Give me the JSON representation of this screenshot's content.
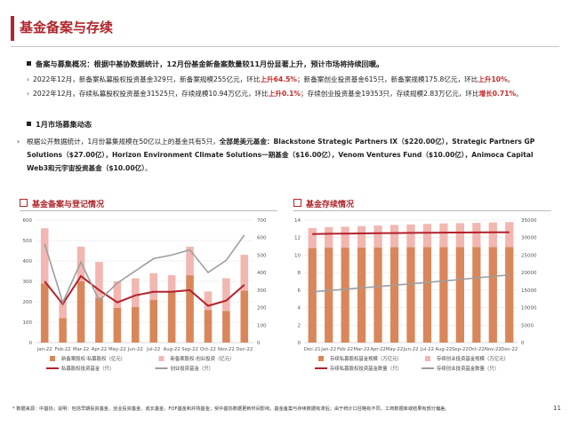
{
  "title": "基金备案与存续",
  "section1": {
    "heading": "备案与募集概况：根据中基协数据统计，12月份基金新备案数量较11月份显著上升，预计市场将持续回暖。",
    "line1": {
      "pre": "2022年12月，新备案私募股权投资基金329只，新备案规模255亿元，环比",
      "hl1": "上升64.5%",
      "mid": "；新备案创业投资基金615只，新备案规模175.8亿元，环比",
      "hl2": "上升10%",
      "post": "。"
    },
    "line2": {
      "pre": "2022年12月，存续私募股权投资基金31525只，存续规模10.94万亿元，环比",
      "hl1": "上升0.1%",
      "mid": "；存续创业投资基金19353只，存续规模2.83万亿元，环比",
      "hl2": "增长0.71%",
      "post": "。"
    }
  },
  "section2": {
    "heading": "1月市场募集动态",
    "p_pre": "根据公开数据统计，1月份募集规模在50亿以上的基金共有5只，",
    "p_bold": "全部是美元基金：Blackstone Strategic Partners IX（$220.00亿），Strategic Partners GP Solutions（$27.00亿），Horizon Environment Climate Solutions一期基金（$16.00亿），Venom Ventures Fund（$10.00亿），Animoca Capital Web3和元宇宙投资基金（$10.00亿）",
    "p_post": "。"
  },
  "chart_titles": {
    "left": "基金备案与登记情况",
    "right": "基金存续情况"
  },
  "legends": {
    "left": [
      "新备案股权-私募股权（亿元）",
      "新备案股权-创业投资（亿元）",
      "私募股权投资基金（只）",
      "创业投资基金（只）"
    ],
    "right": [
      "存续私募股权基金规模（万亿元）",
      "存续创业投资基金规模（万亿元）",
      "存续私募股权投资基金数量（只）",
      "存续创业投资基金数量（只）"
    ]
  },
  "footnote": "* 数据来源：中基协；说明：包括早期投资基金、创业投资基金、成长基金、FOF基金和并购基金；受中基协数据更新时间影响，基金备案与存续数据有滞后；由于统计口径略有不同，工商数据库或结果有部分偏差。",
  "page_number": "11",
  "colors": {
    "accent": "#b0262c",
    "orange": "#d9875a",
    "pink": "#f2b7b1",
    "dark_red": "#b3222a",
    "gray": "#9e9e9e"
  },
  "chart_data": [
    {
      "type": "bar",
      "title": "基金备案与登记情况",
      "categories": [
        "Jan-22",
        "Feb-22",
        "Mar-22",
        "Apr-22",
        "May-22",
        "Jun-22",
        "Jul-22",
        "Aug-22",
        "Sep-22",
        "Oct-22",
        "Nov-22",
        "Dec-22"
      ],
      "stacked": true,
      "ylim": [
        0,
        600
      ],
      "y_ticks": [
        0,
        100,
        200,
        300,
        400,
        500,
        600
      ],
      "y2lim": [
        0,
        700
      ],
      "y2_ticks": [
        0,
        100,
        200,
        300,
        400,
        500,
        600,
        700
      ],
      "series": [
        {
          "name": "新备案股权-私募股权（亿元）",
          "kind": "bar",
          "axis": "left",
          "values": [
            290,
            120,
            300,
            220,
            170,
            175,
            210,
            250,
            330,
            160,
            155,
            255
          ]
        },
        {
          "name": "新备案股权-创业投资（亿元）",
          "kind": "bar",
          "axis": "left",
          "values": [
            270,
            80,
            170,
            175,
            130,
            140,
            130,
            80,
            140,
            90,
            160,
            175
          ]
        },
        {
          "name": "私募股权投资基金（只）",
          "kind": "line",
          "axis": "right",
          "values": [
            350,
            220,
            380,
            300,
            230,
            270,
            290,
            290,
            300,
            210,
            240,
            330
          ]
        },
        {
          "name": "创业投资基金（只）",
          "kind": "line",
          "axis": "right",
          "values": [
            565,
            230,
            460,
            240,
            340,
            410,
            480,
            500,
            530,
            400,
            470,
            615
          ]
        }
      ],
      "grid": true,
      "legend": "bottom"
    },
    {
      "type": "bar",
      "title": "基金存续情况",
      "categories": [
        "Dec-21",
        "Jan-22",
        "Feb-22",
        "Mar-22",
        "Apr-22",
        "May-22",
        "Jun-22",
        "Jul-22",
        "Aug-22",
        "Sep-22",
        "Oct-22",
        "Nov-22",
        "Dec-22"
      ],
      "stacked": true,
      "ylim": [
        0,
        14
      ],
      "y_ticks": [
        0,
        2,
        4,
        6,
        8,
        10,
        12,
        14
      ],
      "y2lim": [
        0,
        35000
      ],
      "y2_ticks": [
        0,
        5000,
        10000,
        15000,
        20000,
        25000,
        30000,
        35000
      ],
      "series": [
        {
          "name": "存续私募股权基金规模（万亿元）",
          "kind": "bar",
          "axis": "left",
          "values": [
            10.8,
            10.85,
            10.85,
            10.87,
            10.88,
            10.9,
            10.9,
            10.91,
            10.92,
            10.93,
            10.93,
            10.93,
            10.94
          ]
        },
        {
          "name": "存续创业投资基金规模（万亿元）",
          "kind": "bar",
          "axis": "left",
          "values": [
            2.3,
            2.35,
            2.4,
            2.45,
            2.5,
            2.55,
            2.6,
            2.65,
            2.7,
            2.72,
            2.75,
            2.8,
            2.83
          ]
        },
        {
          "name": "存续私募股权投资基金数量（只）",
          "kind": "line",
          "axis": "right",
          "values": [
            31000,
            31100,
            31150,
            31200,
            31250,
            31300,
            31350,
            31400,
            31420,
            31450,
            31480,
            31500,
            31525
          ]
        },
        {
          "name": "存续创业投资基金数量（只）",
          "kind": "line",
          "axis": "right",
          "values": [
            14500,
            14850,
            15250,
            15650,
            16000,
            16400,
            16800,
            17200,
            17600,
            18000,
            18500,
            18900,
            19353
          ]
        }
      ],
      "grid": true,
      "legend": "bottom"
    }
  ]
}
